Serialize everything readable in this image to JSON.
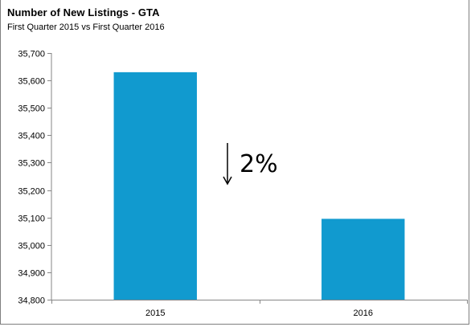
{
  "chart_data": {
    "type": "bar",
    "title": "Number of New Listings - GTA",
    "subtitle": "First Quarter 2015 vs First Quarter 2016",
    "categories": [
      "2015",
      "2016"
    ],
    "values": [
      35630,
      35095
    ],
    "xlabel": "",
    "ylabel": "",
    "ylim": [
      34800,
      35700
    ],
    "yticks": [
      34800,
      34900,
      35000,
      35100,
      35200,
      35300,
      35400,
      35500,
      35600,
      35700
    ],
    "ytick_labels": [
      "34,800",
      "34,900",
      "35,000",
      "35,100",
      "35,200",
      "35,300",
      "35,400",
      "35,500",
      "35,600",
      "35,700"
    ],
    "grid": false,
    "legend": "none",
    "bar_color": "#119ACF",
    "annotation": {
      "text": "2%",
      "direction": "down",
      "icon": "down-arrow-icon"
    }
  }
}
